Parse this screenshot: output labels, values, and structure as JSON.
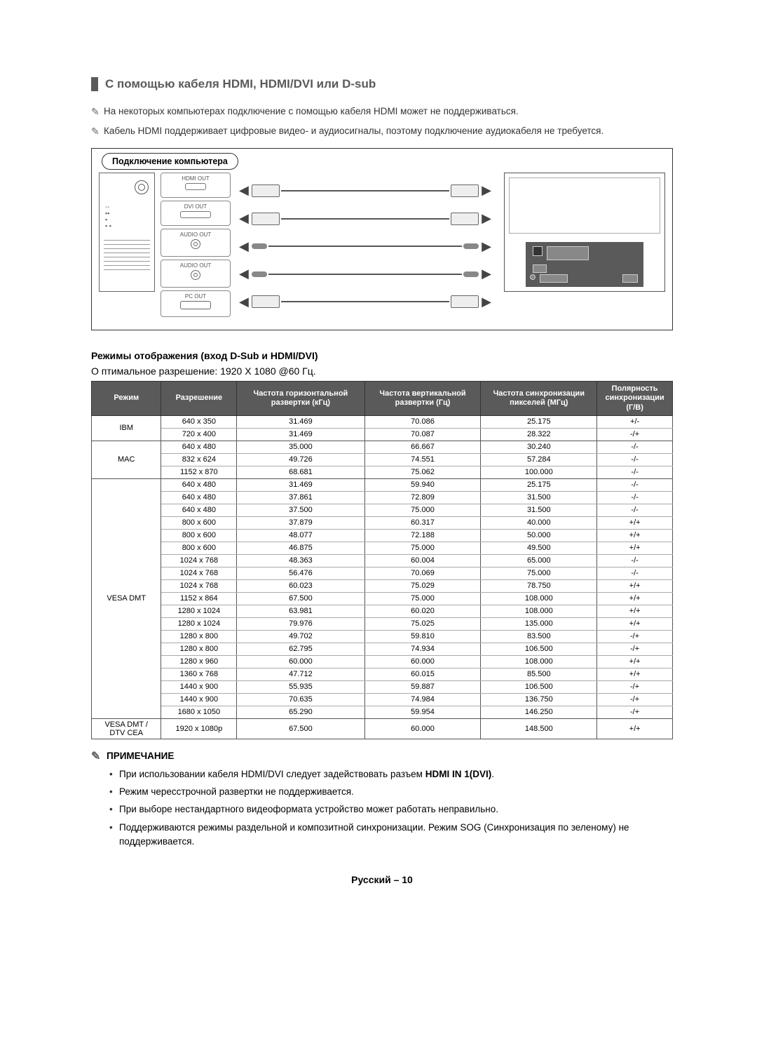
{
  "section_title": "С помощью кабеля HDMI, HDMI/DVI или D-sub",
  "intro_notes": [
    "На некоторых компьютерах подключение с помощью кабеля HDMI может не поддерживаться.",
    "Кабель HDMI поддерживает цифровые видео- и аудиосигналы, поэтому подключение аудиокабеля не требуется."
  ],
  "diagram": {
    "badge": "Подключение компьютера",
    "ports": [
      "HDMI OUT",
      "DVI OUT",
      "AUDIO OUT",
      "AUDIO OUT",
      "PC OUT"
    ]
  },
  "table_heading": "Режимы отображения (вход D-Sub и HDMI/DVI)",
  "optimal_text": "О птимальное разрешение: 1920 X 1080 @60 Гц.",
  "columns": [
    "Режим",
    "Разрешение",
    "Частота горизонтальной развертки (кГц)",
    "Частота вертикальной развертки (Гц)",
    "Частота синхронизации пикселей (МГц)",
    "Полярность синхронизации (Г/В)"
  ],
  "col_widths": [
    "12%",
    "13%",
    "22%",
    "20%",
    "20%",
    "13%"
  ],
  "groups": [
    {
      "mode": "IBM",
      "rows": [
        [
          "640 x 350",
          "31.469",
          "70.086",
          "25.175",
          "+/-"
        ],
        [
          "720 x 400",
          "31.469",
          "70.087",
          "28.322",
          "-/+"
        ]
      ]
    },
    {
      "mode": "MAC",
      "rows": [
        [
          "640 x 480",
          "35.000",
          "66.667",
          "30.240",
          "-/-"
        ],
        [
          "832 x 624",
          "49.726",
          "74.551",
          "57.284",
          "-/-"
        ],
        [
          "1152 x 870",
          "68.681",
          "75.062",
          "100.000",
          "-/-"
        ]
      ]
    },
    {
      "mode": "VESA DMT",
      "rows": [
        [
          "640 x 480",
          "31.469",
          "59.940",
          "25.175",
          "-/-"
        ],
        [
          "640 x 480",
          "37.861",
          "72.809",
          "31.500",
          "-/-"
        ],
        [
          "640 x 480",
          "37.500",
          "75.000",
          "31.500",
          "-/-"
        ],
        [
          "800 x 600",
          "37.879",
          "60.317",
          "40.000",
          "+/+"
        ],
        [
          "800 x 600",
          "48.077",
          "72.188",
          "50.000",
          "+/+"
        ],
        [
          "800 x 600",
          "46.875",
          "75.000",
          "49.500",
          "+/+"
        ],
        [
          "1024 x 768",
          "48.363",
          "60.004",
          "65.000",
          "-/-"
        ],
        [
          "1024 x 768",
          "56.476",
          "70.069",
          "75.000",
          "-/-"
        ],
        [
          "1024 x 768",
          "60.023",
          "75.029",
          "78.750",
          "+/+"
        ],
        [
          "1152 x 864",
          "67.500",
          "75.000",
          "108.000",
          "+/+"
        ],
        [
          "1280 x 1024",
          "63.981",
          "60.020",
          "108.000",
          "+/+"
        ],
        [
          "1280 x 1024",
          "79.976",
          "75.025",
          "135.000",
          "+/+"
        ],
        [
          "1280 x 800",
          "49.702",
          "59.810",
          "83.500",
          "-/+"
        ],
        [
          "1280 x 800",
          "62.795",
          "74.934",
          "106.500",
          "-/+"
        ],
        [
          "1280 x 960",
          "60.000",
          "60.000",
          "108.000",
          "+/+"
        ],
        [
          "1360 x 768",
          "47.712",
          "60.015",
          "85.500",
          "+/+"
        ],
        [
          "1440 x 900",
          "55.935",
          "59.887",
          "106.500",
          "-/+"
        ],
        [
          "1440 x 900",
          "70.635",
          "74.984",
          "136.750",
          "-/+"
        ],
        [
          "1680 x 1050",
          "65.290",
          "59.954",
          "146.250",
          "-/+"
        ]
      ]
    },
    {
      "mode": "VESA DMT / DTV CEA",
      "rows": [
        [
          "1920 x 1080p",
          "67.500",
          "60.000",
          "148.500",
          "+/+"
        ]
      ]
    }
  ],
  "notes_heading": "ПРИМЕЧАНИЕ",
  "notes_bullets": [
    {
      "pre": "При использовании кабеля HDMI/DVI следует задействовать разъем ",
      "bold": "HDMI IN 1(DVI)",
      "post": "."
    },
    {
      "pre": "Режим чересстрочной развертки не поддерживается.",
      "bold": "",
      "post": ""
    },
    {
      "pre": "При выборе нестандартного видеоформата устройство может работать неправильно.",
      "bold": "",
      "post": ""
    },
    {
      "pre": "Поддерживаются режимы раздельной и композитной синхронизации.  Режим SOG (Синхронизация по зеленому) не поддерживается.",
      "bold": "",
      "post": ""
    }
  ],
  "footer": "Русский – 10",
  "colors": {
    "header_bg": "#5a5a5a",
    "text": "#333333",
    "border": "#555555"
  }
}
